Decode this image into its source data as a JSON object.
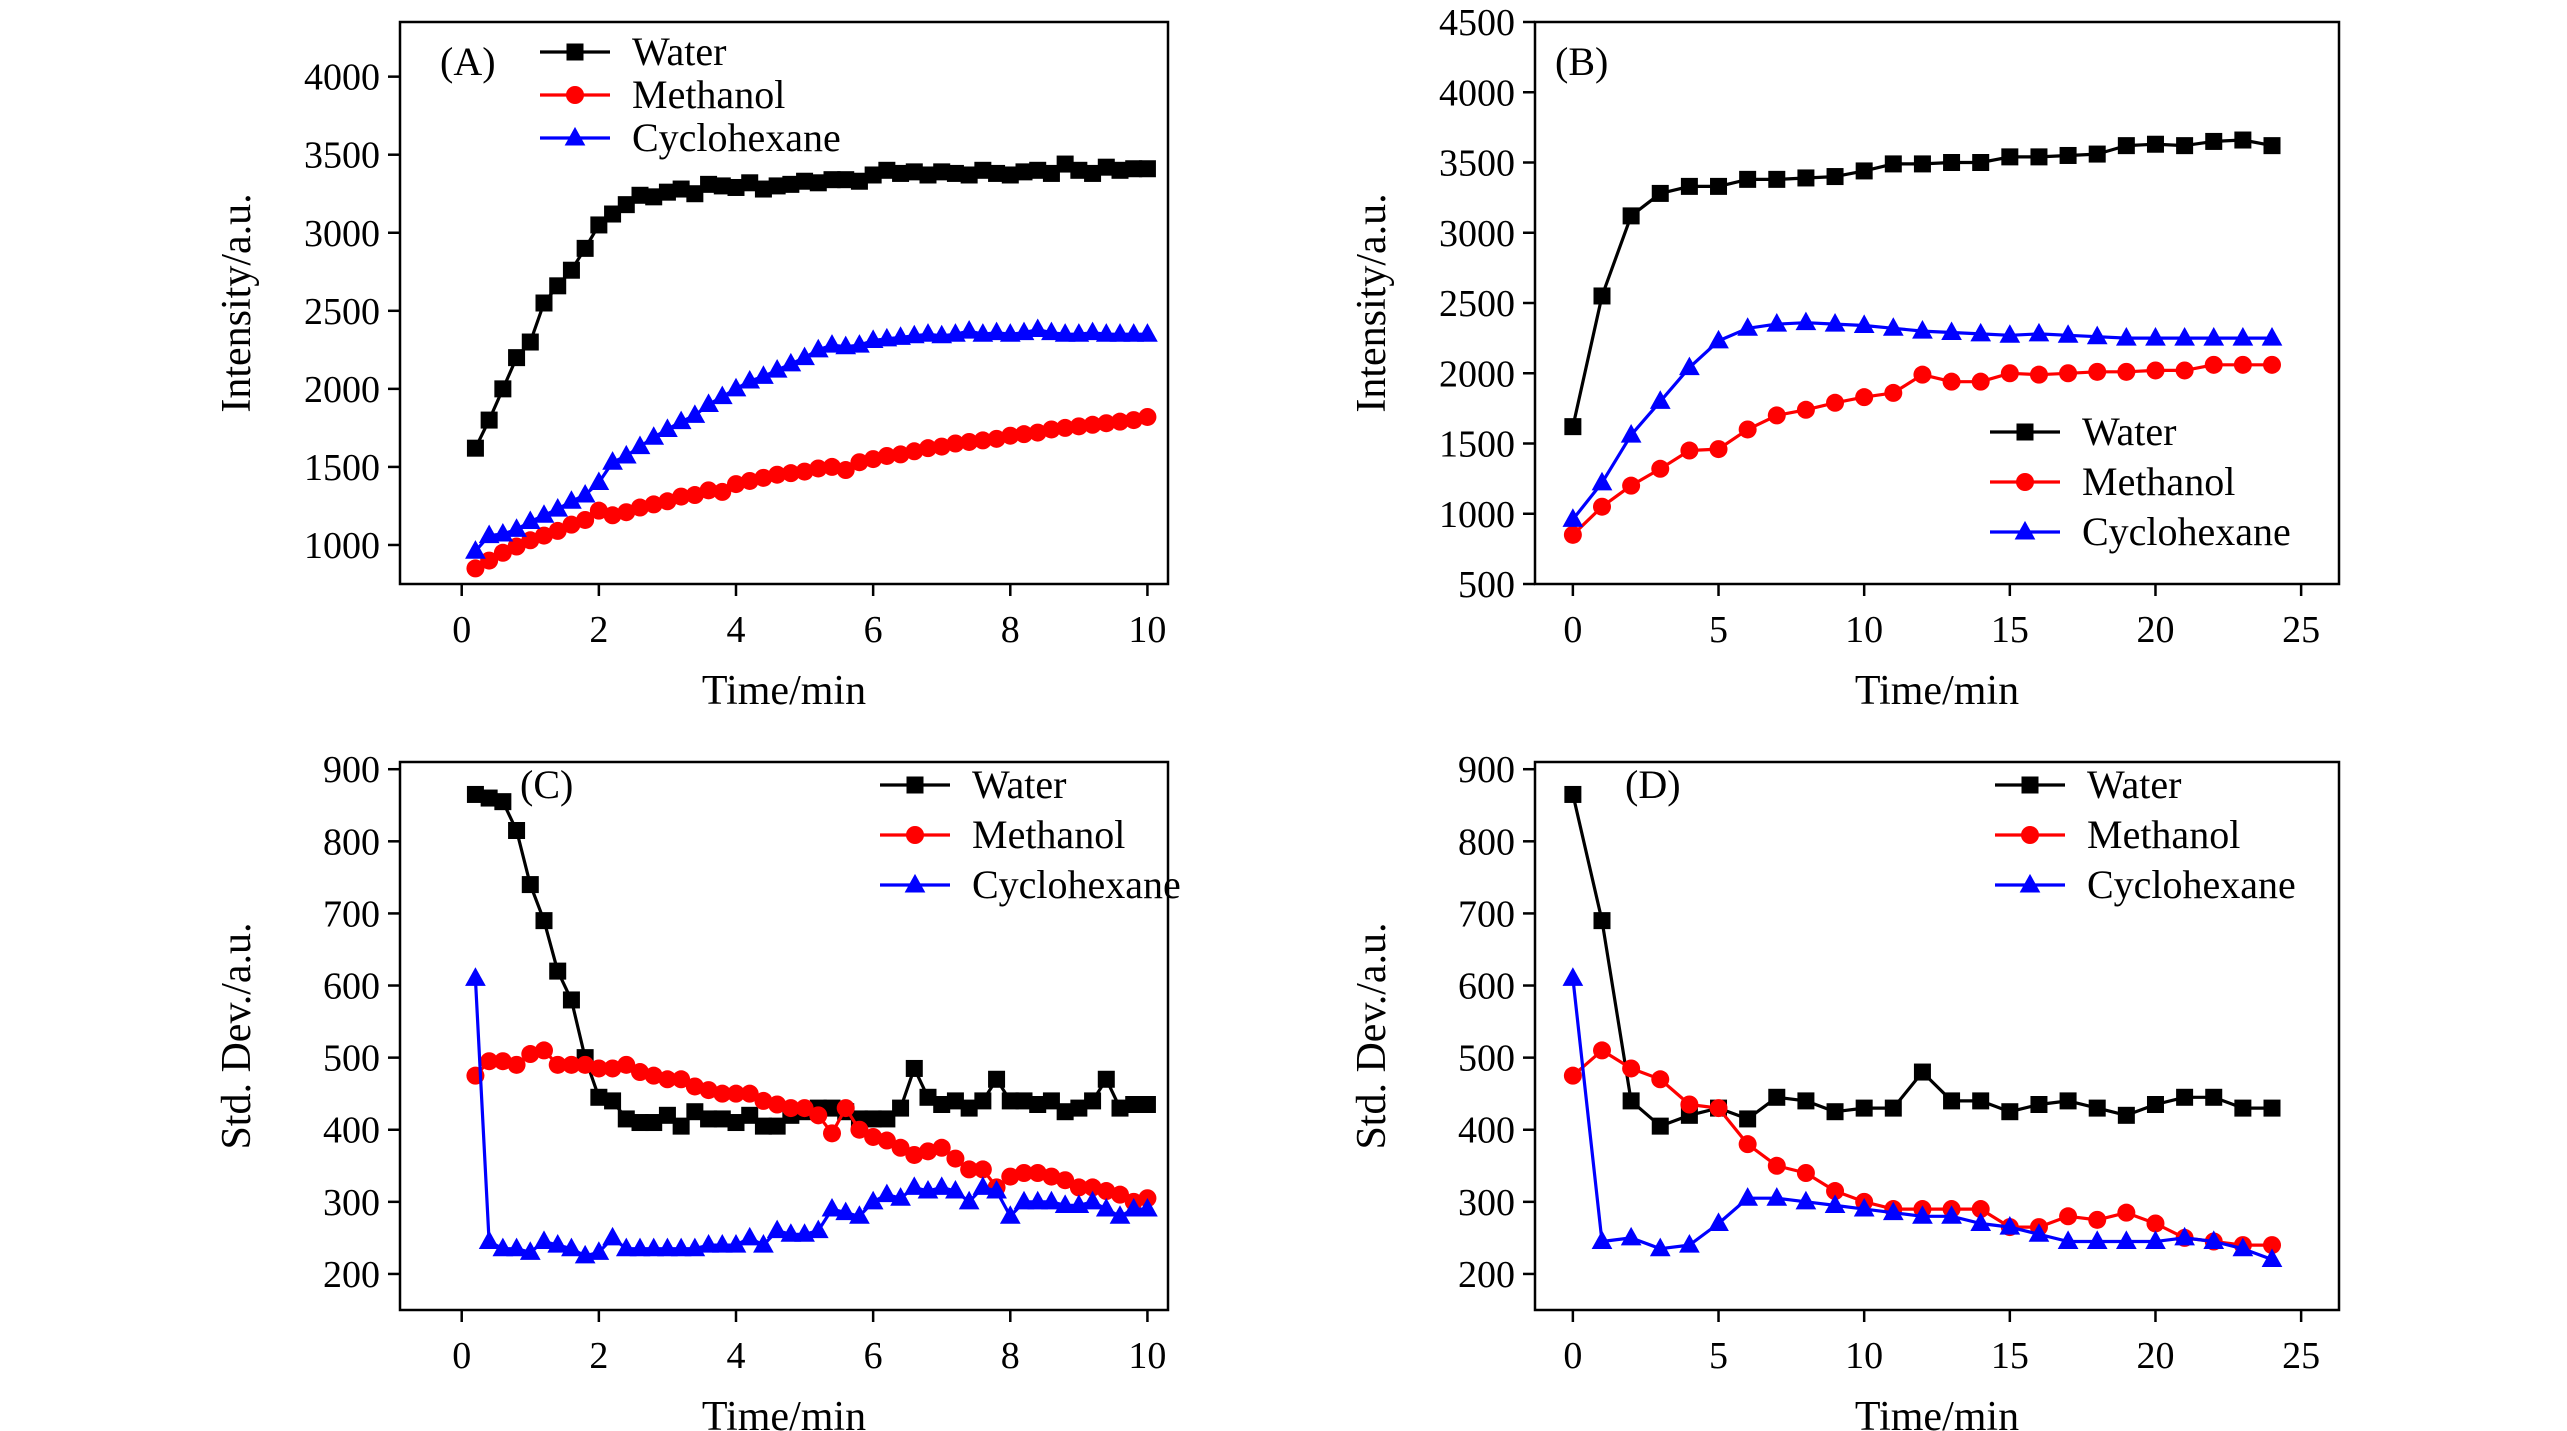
{
  "chart_data": [
    {
      "id": "A",
      "type": "line",
      "panel_label": "(A)",
      "xlabel": "Time/min",
      "ylabel": "Intensity/a.u.",
      "xlim": [
        -0.9,
        10.3
      ],
      "ylim": [
        750,
        4350
      ],
      "xticks": [
        0,
        2,
        4,
        6,
        8,
        10
      ],
      "yticks": [
        1000,
        1500,
        2000,
        2500,
        3000,
        3500,
        4000
      ],
      "legend_position": "top",
      "series": [
        {
          "name": "Water",
          "color": "#000000",
          "marker": "square",
          "x": [
            0.2,
            0.4,
            0.6,
            0.8,
            1.0,
            1.2,
            1.4,
            1.6,
            1.8,
            2.0,
            2.2,
            2.4,
            2.6,
            2.8,
            3.0,
            3.2,
            3.4,
            3.6,
            3.8,
            4.0,
            4.2,
            4.4,
            4.6,
            4.8,
            5.0,
            5.2,
            5.4,
            5.6,
            5.8,
            6.0,
            6.2,
            6.4,
            6.6,
            6.8,
            7.0,
            7.2,
            7.4,
            7.6,
            7.8,
            8.0,
            8.2,
            8.4,
            8.6,
            8.8,
            9.0,
            9.2,
            9.4,
            9.6,
            9.8,
            10.0
          ],
          "y": [
            1620,
            1800,
            2000,
            2200,
            2300,
            2550,
            2660,
            2760,
            2900,
            3050,
            3120,
            3180,
            3240,
            3230,
            3260,
            3280,
            3250,
            3310,
            3300,
            3290,
            3320,
            3280,
            3300,
            3310,
            3330,
            3320,
            3340,
            3340,
            3330,
            3370,
            3400,
            3380,
            3390,
            3370,
            3390,
            3380,
            3370,
            3400,
            3380,
            3370,
            3390,
            3400,
            3380,
            3440,
            3400,
            3380,
            3420,
            3400,
            3410,
            3410
          ]
        },
        {
          "name": "Methanol",
          "color": "#ff0000",
          "marker": "circle",
          "x": [
            0.2,
            0.4,
            0.6,
            0.8,
            1.0,
            1.2,
            1.4,
            1.6,
            1.8,
            2.0,
            2.2,
            2.4,
            2.6,
            2.8,
            3.0,
            3.2,
            3.4,
            3.6,
            3.8,
            4.0,
            4.2,
            4.4,
            4.6,
            4.8,
            5.0,
            5.2,
            5.4,
            5.6,
            5.8,
            6.0,
            6.2,
            6.4,
            6.6,
            6.8,
            7.0,
            7.2,
            7.4,
            7.6,
            7.8,
            8.0,
            8.2,
            8.4,
            8.6,
            8.8,
            9.0,
            9.2,
            9.4,
            9.6,
            9.8,
            10.0
          ],
          "y": [
            850,
            900,
            950,
            990,
            1030,
            1060,
            1090,
            1130,
            1160,
            1220,
            1190,
            1210,
            1240,
            1260,
            1280,
            1310,
            1320,
            1350,
            1340,
            1390,
            1410,
            1430,
            1450,
            1460,
            1470,
            1490,
            1500,
            1480,
            1530,
            1550,
            1570,
            1580,
            1600,
            1620,
            1630,
            1650,
            1660,
            1670,
            1680,
            1700,
            1710,
            1720,
            1740,
            1750,
            1760,
            1770,
            1780,
            1790,
            1800,
            1820
          ]
        },
        {
          "name": "Cyclohexane",
          "color": "#0000ff",
          "marker": "triangle",
          "x": [
            0.2,
            0.4,
            0.6,
            0.8,
            1.0,
            1.2,
            1.4,
            1.6,
            1.8,
            2.0,
            2.2,
            2.4,
            2.6,
            2.8,
            3.0,
            3.2,
            3.4,
            3.6,
            3.8,
            4.0,
            4.2,
            4.4,
            4.6,
            4.8,
            5.0,
            5.2,
            5.4,
            5.6,
            5.8,
            6.0,
            6.2,
            6.4,
            6.6,
            6.8,
            7.0,
            7.2,
            7.4,
            7.6,
            7.8,
            8.0,
            8.2,
            8.4,
            8.6,
            8.8,
            9.0,
            9.2,
            9.4,
            9.6,
            9.8,
            10.0
          ],
          "y": [
            960,
            1060,
            1070,
            1100,
            1150,
            1190,
            1230,
            1280,
            1320,
            1400,
            1530,
            1570,
            1630,
            1690,
            1740,
            1790,
            1830,
            1900,
            1950,
            2000,
            2050,
            2080,
            2120,
            2160,
            2200,
            2250,
            2280,
            2270,
            2280,
            2310,
            2320,
            2330,
            2340,
            2350,
            2340,
            2350,
            2370,
            2350,
            2360,
            2350,
            2360,
            2380,
            2360,
            2350,
            2350,
            2360,
            2350,
            2350,
            2350,
            2350
          ]
        }
      ]
    },
    {
      "id": "B",
      "type": "line",
      "panel_label": "(B)",
      "xlabel": "Time/min",
      "ylabel": "Intensity/a.u.",
      "xlim": [
        -1.3,
        26.3
      ],
      "ylim": [
        500,
        4500
      ],
      "xticks": [
        0,
        5,
        10,
        15,
        20,
        25
      ],
      "yticks": [
        500,
        1000,
        1500,
        2000,
        2500,
        3000,
        3500,
        4000,
        4500
      ],
      "legend_position": "bottom-right",
      "series": [
        {
          "name": "Water",
          "color": "#000000",
          "marker": "square",
          "x": [
            0,
            1,
            2,
            3,
            4,
            5,
            6,
            7,
            8,
            9,
            10,
            11,
            12,
            13,
            14,
            15,
            16,
            17,
            18,
            19,
            20,
            21,
            22,
            23,
            24
          ],
          "y": [
            1620,
            2550,
            3120,
            3280,
            3330,
            3330,
            3380,
            3380,
            3390,
            3400,
            3440,
            3490,
            3490,
            3500,
            3500,
            3540,
            3540,
            3550,
            3560,
            3620,
            3630,
            3620,
            3650,
            3660,
            3620
          ]
        },
        {
          "name": "Methanol",
          "color": "#ff0000",
          "marker": "circle",
          "x": [
            0,
            1,
            2,
            3,
            4,
            5,
            6,
            7,
            8,
            9,
            10,
            11,
            12,
            13,
            14,
            15,
            16,
            17,
            18,
            19,
            20,
            21,
            22,
            23,
            24
          ],
          "y": [
            850,
            1050,
            1200,
            1320,
            1450,
            1460,
            1600,
            1700,
            1740,
            1790,
            1830,
            1860,
            1990,
            1940,
            1940,
            2000,
            1990,
            2000,
            2010,
            2010,
            2020,
            2020,
            2060,
            2060,
            2060
          ]
        },
        {
          "name": "Cyclohexane",
          "color": "#0000ff",
          "marker": "triangle",
          "x": [
            0,
            1,
            2,
            3,
            4,
            5,
            6,
            7,
            8,
            9,
            10,
            11,
            12,
            13,
            14,
            15,
            16,
            17,
            18,
            19,
            20,
            21,
            22,
            23,
            24
          ],
          "y": [
            960,
            1220,
            1560,
            1800,
            2040,
            2230,
            2320,
            2350,
            2360,
            2350,
            2340,
            2320,
            2300,
            2290,
            2280,
            2270,
            2280,
            2270,
            2260,
            2250,
            2250,
            2250,
            2250,
            2250,
            2250
          ]
        }
      ]
    },
    {
      "id": "C",
      "type": "line",
      "panel_label": "(C)",
      "xlabel": "Time/min",
      "ylabel": "Std. Dev./a.u.",
      "xlim": [
        -0.9,
        10.3
      ],
      "ylim": [
        150,
        910
      ],
      "xticks": [
        0,
        2,
        4,
        6,
        8,
        10
      ],
      "yticks": [
        200,
        300,
        400,
        500,
        600,
        700,
        800,
        900
      ],
      "legend_position": "top-right",
      "series": [
        {
          "name": "Water",
          "color": "#000000",
          "marker": "square",
          "x": [
            0.2,
            0.4,
            0.6,
            0.8,
            1.0,
            1.2,
            1.4,
            1.6,
            1.8,
            2.0,
            2.2,
            2.4,
            2.6,
            2.8,
            3.0,
            3.2,
            3.4,
            3.6,
            3.8,
            4.0,
            4.2,
            4.4,
            4.6,
            4.8,
            5.0,
            5.2,
            5.4,
            5.6,
            5.8,
            6.0,
            6.2,
            6.4,
            6.6,
            6.8,
            7.0,
            7.2,
            7.4,
            7.6,
            7.8,
            8.0,
            8.2,
            8.4,
            8.6,
            8.8,
            9.0,
            9.2,
            9.4,
            9.6,
            9.8,
            10.0
          ],
          "y": [
            865,
            860,
            855,
            815,
            740,
            690,
            620,
            580,
            500,
            445,
            440,
            415,
            410,
            410,
            420,
            405,
            425,
            415,
            415,
            410,
            420,
            405,
            405,
            420,
            425,
            430,
            430,
            425,
            415,
            415,
            415,
            430,
            485,
            445,
            435,
            440,
            430,
            440,
            470,
            440,
            440,
            435,
            440,
            425,
            430,
            440,
            470,
            430,
            435,
            435
          ]
        },
        {
          "name": "Methanol",
          "color": "#ff0000",
          "marker": "circle",
          "x": [
            0.2,
            0.4,
            0.6,
            0.8,
            1.0,
            1.2,
            1.4,
            1.6,
            1.8,
            2.0,
            2.2,
            2.4,
            2.6,
            2.8,
            3.0,
            3.2,
            3.4,
            3.6,
            3.8,
            4.0,
            4.2,
            4.4,
            4.6,
            4.8,
            5.0,
            5.2,
            5.4,
            5.6,
            5.8,
            6.0,
            6.2,
            6.4,
            6.6,
            6.8,
            7.0,
            7.2,
            7.4,
            7.6,
            7.8,
            8.0,
            8.2,
            8.4,
            8.6,
            8.8,
            9.0,
            9.2,
            9.4,
            9.6,
            9.8,
            10.0
          ],
          "y": [
            475,
            495,
            495,
            490,
            505,
            510,
            490,
            490,
            490,
            485,
            485,
            490,
            480,
            475,
            470,
            470,
            460,
            455,
            450,
            450,
            450,
            440,
            435,
            430,
            430,
            420,
            395,
            430,
            400,
            390,
            385,
            375,
            365,
            370,
            375,
            360,
            345,
            345,
            320,
            335,
            340,
            340,
            335,
            330,
            320,
            320,
            315,
            310,
            300,
            305
          ]
        },
        {
          "name": "Cyclohexane",
          "color": "#0000ff",
          "marker": "triangle",
          "x": [
            0.2,
            0.4,
            0.6,
            0.8,
            1.0,
            1.2,
            1.4,
            1.6,
            1.8,
            2.0,
            2.2,
            2.4,
            2.6,
            2.8,
            3.0,
            3.2,
            3.4,
            3.6,
            3.8,
            4.0,
            4.2,
            4.4,
            4.6,
            4.8,
            5.0,
            5.2,
            5.4,
            5.6,
            5.8,
            6.0,
            6.2,
            6.4,
            6.6,
            6.8,
            7.0,
            7.2,
            7.4,
            7.6,
            7.8,
            8.0,
            8.2,
            8.4,
            8.6,
            8.8,
            9.0,
            9.2,
            9.4,
            9.6,
            9.8,
            10.0
          ],
          "y": [
            610,
            245,
            235,
            235,
            230,
            245,
            240,
            235,
            225,
            230,
            250,
            235,
            235,
            235,
            235,
            235,
            235,
            240,
            240,
            240,
            250,
            240,
            260,
            255,
            255,
            260,
            290,
            285,
            280,
            300,
            310,
            305,
            320,
            315,
            320,
            315,
            300,
            320,
            315,
            280,
            300,
            300,
            300,
            295,
            295,
            300,
            290,
            280,
            290,
            290
          ]
        }
      ]
    },
    {
      "id": "D",
      "type": "line",
      "panel_label": "(D)",
      "xlabel": "Time/min",
      "ylabel": "Std. Dev./a.u.",
      "xlim": [
        -1.3,
        26.3
      ],
      "ylim": [
        150,
        910
      ],
      "xticks": [
        0,
        5,
        10,
        15,
        20,
        25
      ],
      "yticks": [
        200,
        300,
        400,
        500,
        600,
        700,
        800,
        900
      ],
      "legend_position": "top-right",
      "series": [
        {
          "name": "Water",
          "color": "#000000",
          "marker": "square",
          "x": [
            0,
            1,
            2,
            3,
            4,
            5,
            6,
            7,
            8,
            9,
            10,
            11,
            12,
            13,
            14,
            15,
            16,
            17,
            18,
            19,
            20,
            21,
            22,
            23,
            24
          ],
          "y": [
            865,
            690,
            440,
            405,
            420,
            430,
            415,
            445,
            440,
            425,
            430,
            430,
            480,
            440,
            440,
            425,
            435,
            440,
            430,
            420,
            435,
            445,
            445,
            430,
            430
          ]
        },
        {
          "name": "Methanol",
          "color": "#ff0000",
          "marker": "circle",
          "x": [
            0,
            1,
            2,
            3,
            4,
            5,
            6,
            7,
            8,
            9,
            10,
            11,
            12,
            13,
            14,
            15,
            16,
            17,
            18,
            19,
            20,
            21,
            22,
            23,
            24
          ],
          "y": [
            475,
            510,
            485,
            470,
            435,
            430,
            380,
            350,
            340,
            315,
            300,
            290,
            290,
            290,
            290,
            265,
            265,
            280,
            275,
            285,
            270,
            250,
            245,
            240,
            240
          ]
        },
        {
          "name": "Cyclohexane",
          "color": "#0000ff",
          "marker": "triangle",
          "x": [
            0,
            1,
            2,
            3,
            4,
            5,
            6,
            7,
            8,
            9,
            10,
            11,
            12,
            13,
            14,
            15,
            16,
            17,
            18,
            19,
            20,
            21,
            22,
            23,
            24
          ],
          "y": [
            610,
            245,
            250,
            235,
            240,
            270,
            305,
            305,
            300,
            295,
            290,
            285,
            280,
            280,
            270,
            265,
            255,
            245,
            245,
            245,
            245,
            250,
            245,
            235,
            220
          ]
        }
      ]
    }
  ]
}
